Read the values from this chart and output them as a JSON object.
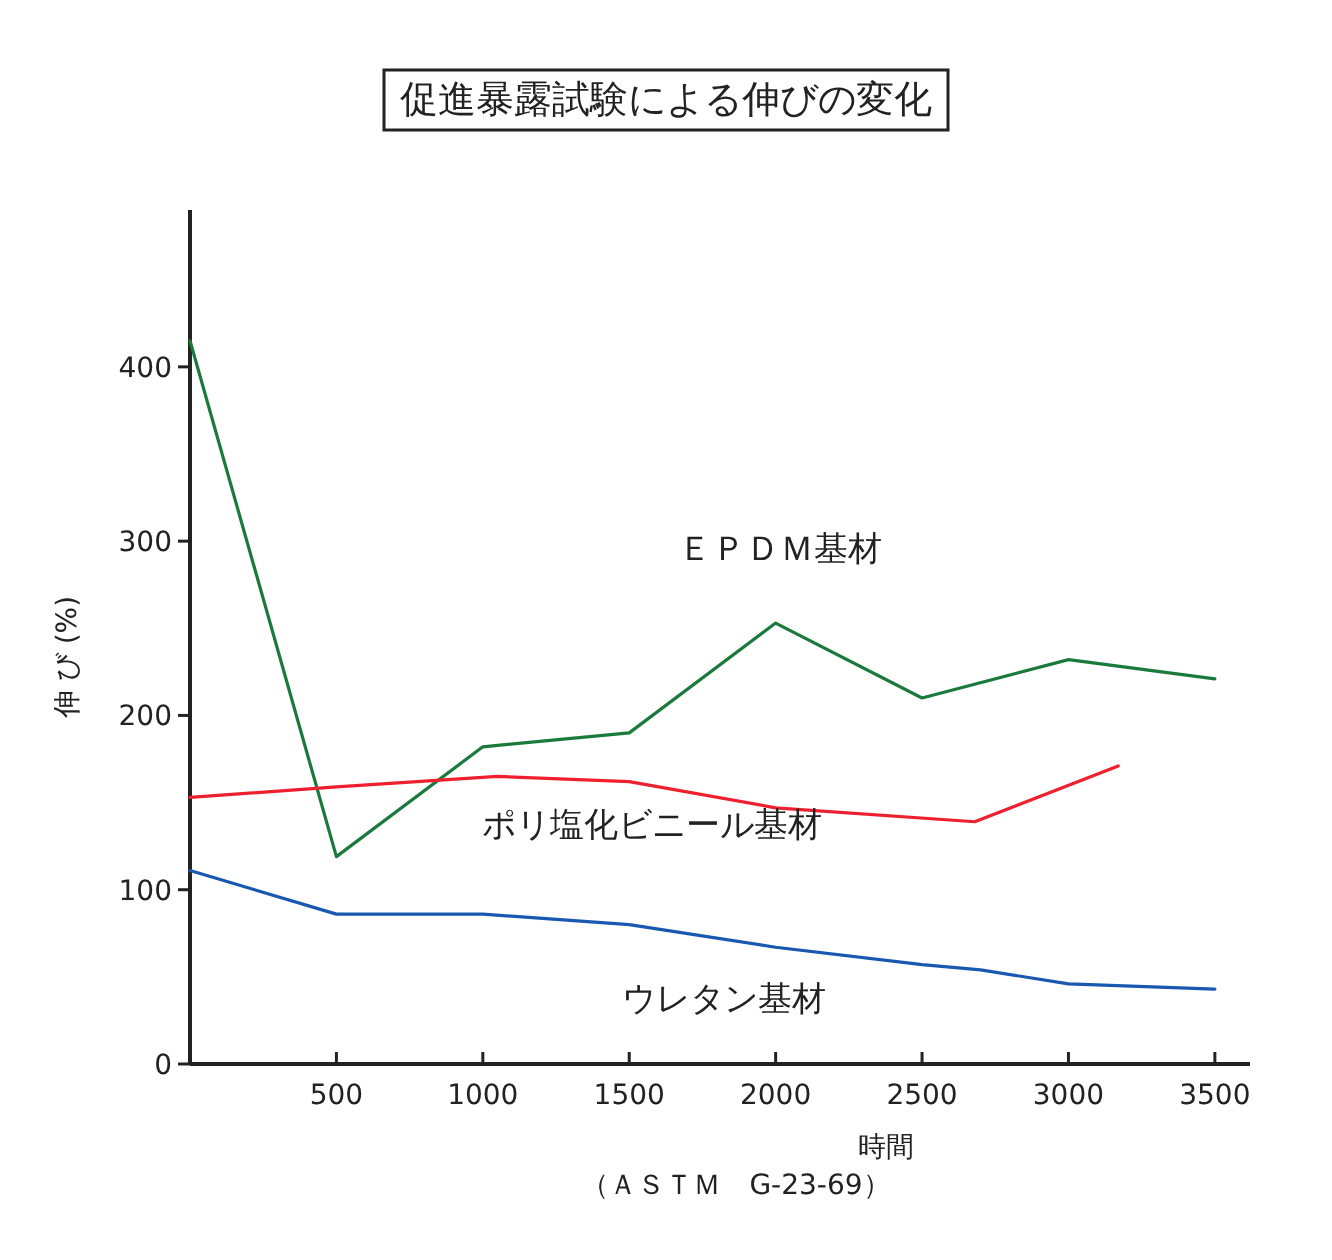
{
  "chart_data": {
    "type": "line",
    "title": "促進暴露試験による伸びの変化",
    "xlabel": "時間",
    "ylabel": "伸 び (%)",
    "annotations": [
      "（ＡＳＴＭ　G-23-69）"
    ],
    "xlim": [
      0,
      3620
    ],
    "ylim": [
      0,
      490
    ],
    "xticks": [
      500,
      1000,
      1500,
      2000,
      2500,
      3000,
      3500
    ],
    "yticks": [
      0,
      100,
      200,
      300,
      400
    ],
    "grid": false,
    "marker": "none",
    "line_style": "solid",
    "series": [
      {
        "name": "ＥＰＤＭ基材",
        "color": "#1a7a3c",
        "x": [
          0,
          500,
          1000,
          1500,
          2000,
          2500,
          3000,
          3500
        ],
        "values": [
          415,
          119,
          182,
          190,
          253,
          210,
          232,
          221
        ]
      },
      {
        "name": "ポリ塩化ビニール基材",
        "color": "#ee2030",
        "x": [
          0,
          500,
          1050,
          1500,
          2000,
          2680,
          3170
        ],
        "values": [
          153,
          159,
          165,
          162,
          147,
          139,
          171
        ]
      },
      {
        "name": "ウレタン基材",
        "color": "#1858b0",
        "x": [
          0,
          500,
          1000,
          1500,
          2000,
          2500,
          2700,
          3000,
          3500
        ],
        "values": [
          111,
          86,
          86,
          80,
          67,
          57,
          54,
          46,
          43
        ]
      }
    ]
  }
}
